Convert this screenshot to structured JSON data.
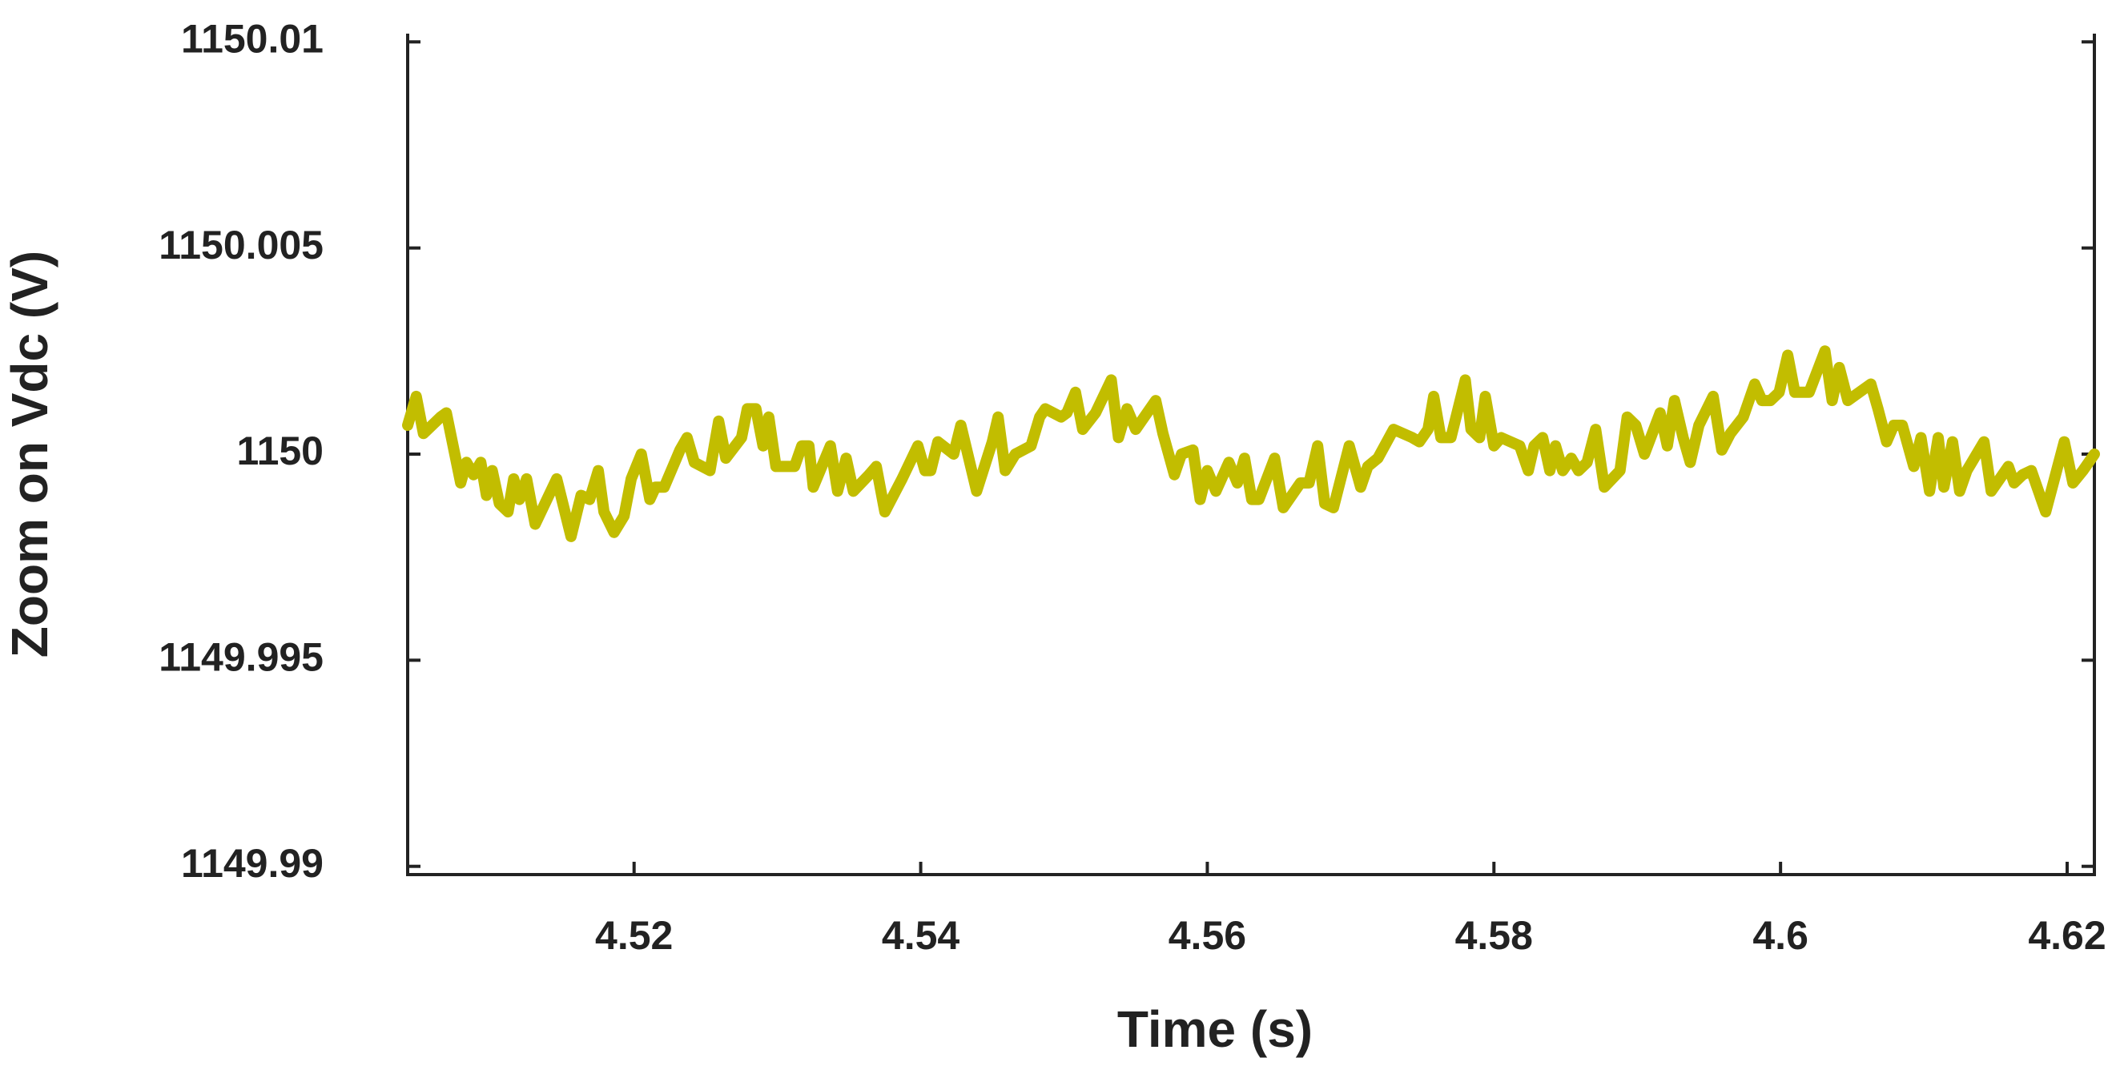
{
  "chart_data": {
    "type": "line",
    "xlabel": "Time (s)",
    "ylabel": "Zoom on Vdc (V)",
    "xlim": [
      4.5042,
      4.6219
    ],
    "ylim": [
      1149.9898,
      1150.0102
    ],
    "xticks": [
      4.52,
      4.54,
      4.56,
      4.58,
      4.6,
      4.62
    ],
    "yticks": [
      1149.99,
      1149.995,
      1150,
      1150.005,
      1150.01
    ],
    "grid": false,
    "x": [
      4.5042,
      4.5048,
      4.5053,
      4.5065,
      4.5069,
      4.5079,
      4.5083,
      4.5088,
      4.5093,
      4.5097,
      4.5101,
      4.5106,
      4.5112,
      4.5116,
      4.512,
      4.5125,
      4.5131,
      4.5146,
      4.5156,
      4.5163,
      4.5169,
      4.5175,
      4.5179,
      4.5186,
      4.5193,
      4.5198,
      4.5205,
      4.5211,
      4.5215,
      4.5221,
      4.5232,
      4.5237,
      4.5242,
      4.5253,
      4.5259,
      4.5264,
      4.5275,
      4.5279,
      4.5285,
      4.529,
      4.5294,
      4.5299,
      4.5312,
      4.5317,
      4.5322,
      4.5325,
      4.5337,
      4.5342,
      4.5348,
      4.5353,
      4.5364,
      4.5369,
      4.5375,
      4.5387,
      4.5398,
      4.5403,
      4.5407,
      4.5412,
      4.5423,
      4.5428,
      4.5439,
      4.545,
      4.5454,
      4.5459,
      4.5466,
      4.5477,
      4.5483,
      4.5487,
      4.5498,
      4.5502,
      4.5508,
      4.5513,
      4.5522,
      4.5533,
      4.5538,
      4.5544,
      4.555,
      4.5564,
      4.5569,
      4.5577,
      4.5582,
      4.559,
      4.5595,
      4.56,
      4.5606,
      4.5615,
      4.5621,
      4.5626,
      4.5631,
      4.5636,
      4.5647,
      4.5653,
      4.5665,
      4.5671,
      4.5677,
      4.5682,
      4.5688,
      4.5699,
      4.5707,
      4.5712,
      4.5719,
      4.573,
      4.5743,
      4.5748,
      4.5754,
      4.5758,
      4.5763,
      4.577,
      4.578,
      4.5784,
      4.579,
      4.5794,
      4.58,
      4.5805,
      4.5818,
      4.5824,
      4.5828,
      4.5834,
      4.5839,
      4.5843,
      4.5848,
      4.5854,
      4.5859,
      4.5865,
      4.5871,
      4.5877,
      4.5888,
      4.5893,
      4.5899,
      4.5905,
      4.5916,
      4.5921,
      4.5926,
      4.5932,
      4.5937,
      4.5943,
      4.5953,
      4.5959,
      4.5965,
      4.5974,
      4.5982,
      4.5987,
      4.5993,
      4.5999,
      4.6005,
      4.601,
      4.602,
      4.6031,
      4.6036,
      4.6041,
      4.6047,
      4.6063,
      4.6068,
      4.6074,
      4.6079,
      4.6085,
      4.6093,
      4.6098,
      4.6104,
      4.611,
      4.6114,
      4.612,
      4.6125,
      4.613,
      4.6142,
      4.6147,
      4.6153,
      4.6159,
      4.6163,
      4.6169,
      4.6175,
      4.6179,
      4.6185,
      4.6198,
      4.6204,
      4.6211,
      4.6219
    ],
    "series": [
      {
        "color": "#c2bd00",
        "values": [
          1150.0007,
          1150.0014,
          1150.0005,
          1150.0009,
          1150.001,
          1149.9993,
          1149.9998,
          1149.9995,
          1149.9998,
          1149.999,
          1149.9996,
          1149.9988,
          1149.9986,
          1149.9994,
          1149.9989,
          1149.9994,
          1149.9983,
          1149.9994,
          1149.998,
          1149.999,
          1149.9989,
          1149.9996,
          1149.9986,
          1149.9981,
          1149.9985,
          1149.9994,
          1150,
          1149.9989,
          1149.9992,
          1149.9992,
          1150.0001,
          1150.0004,
          1149.9998,
          1149.9996,
          1150.0008,
          1149.9999,
          1150.0004,
          1150.0011,
          1150.0011,
          1150.0002,
          1150.0009,
          1149.9997,
          1149.9997,
          1150.0002,
          1150.0002,
          1149.9992,
          1150.0002,
          1149.9991,
          1149.9999,
          1149.9991,
          1149.9995,
          1149.9997,
          1149.9986,
          1149.9994,
          1150.0002,
          1149.9996,
          1149.9996,
          1150.0003,
          1150,
          1150.0007,
          1149.9991,
          1150.0003,
          1150.0009,
          1149.9996,
          1150,
          1150.0002,
          1150.0009,
          1150.0011,
          1150.0009,
          1150.001,
          1150.0015,
          1150.0006,
          1150.001,
          1150.0018,
          1150.0004,
          1150.0011,
          1150.0006,
          1150.0013,
          1150.0005,
          1149.9995,
          1150,
          1150.0001,
          1149.9989,
          1149.9996,
          1149.9991,
          1149.9998,
          1149.9993,
          1149.9999,
          1149.9989,
          1149.9989,
          1149.9999,
          1149.9987,
          1149.9993,
          1149.9993,
          1150.0002,
          1149.9988,
          1149.9987,
          1150.0002,
          1149.9992,
          1149.9997,
          1149.9999,
          1150.0006,
          1150.0004,
          1150.0003,
          1150.0006,
          1150.0014,
          1150.0004,
          1150.0004,
          1150.0018,
          1150.0006,
          1150.0004,
          1150.0014,
          1150.0002,
          1150.0004,
          1150.0002,
          1149.9996,
          1150.0002,
          1150.0004,
          1149.9996,
          1150.0002,
          1149.9996,
          1149.9999,
          1149.9996,
          1149.9998,
          1150.0006,
          1149.9992,
          1149.9996,
          1150.0009,
          1150.0007,
          1150,
          1150.001,
          1150.0002,
          1150.0013,
          1150.0004,
          1149.9998,
          1150.0007,
          1150.0014,
          1150.0001,
          1150.0005,
          1150.0009,
          1150.0017,
          1150.0013,
          1150.0013,
          1150.0015,
          1150.0024,
          1150.0015,
          1150.0015,
          1150.0025,
          1150.0013,
          1150.0021,
          1150.0013,
          1150.0017,
          1150.0011,
          1150.0003,
          1150.0007,
          1150.0007,
          1149.9997,
          1150.0004,
          1149.9991,
          1150.0004,
          1149.9992,
          1150.0003,
          1149.9991,
          1149.9996,
          1150.0003,
          1149.9991,
          1149.9994,
          1149.9997,
          1149.9993,
          1149.9995,
          1149.9996,
          1149.9992,
          1149.9986,
          1150.0003,
          1149.9993,
          1149.9996,
          1150
        ]
      }
    ]
  }
}
